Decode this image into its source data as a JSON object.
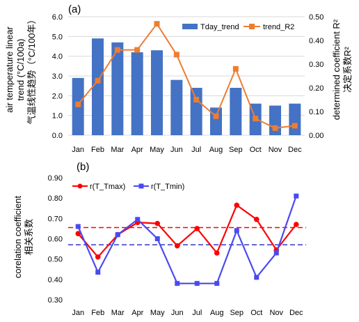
{
  "chart_data": [
    {
      "panel_label": "(a)",
      "type": "bar",
      "categories": [
        "Jan",
        "Feb",
        "Mar",
        "Apr",
        "May",
        "Jun",
        "Jul",
        "Aug",
        "Sep",
        "Oct",
        "Nov",
        "Dec"
      ],
      "ylabel": [
        "air temperature linear",
        "trend (°C/100a)",
        "气温线性趋势（°C/100年）"
      ],
      "y2label": [
        "determined coefficient R²",
        "决定系数R²"
      ],
      "ylim": [
        0,
        6
      ],
      "yticks": [
        "0.0",
        "1.0",
        "2.0",
        "3.0",
        "4.0",
        "5.0",
        "6.0"
      ],
      "y2lim": [
        0,
        0.5
      ],
      "y2ticks": [
        "0.00",
        "0.10",
        "0.20",
        "0.30",
        "0.40",
        "0.50"
      ],
      "legend_position": "top-right",
      "series": [
        {
          "name": "Tday_trend",
          "type": "bar",
          "axis": "left",
          "color": "#4472C4",
          "values": [
            2.9,
            4.9,
            4.7,
            4.2,
            4.3,
            2.8,
            2.4,
            1.4,
            2.4,
            1.6,
            1.5,
            1.6
          ]
        },
        {
          "name": "trend_R2",
          "type": "line",
          "axis": "right",
          "color": "#ED7D31",
          "marker": "square",
          "values": [
            0.13,
            0.23,
            0.36,
            0.36,
            0.47,
            0.34,
            0.15,
            0.08,
            0.28,
            0.07,
            0.03,
            0.04
          ]
        }
      ]
    },
    {
      "panel_label": "(b)",
      "type": "line",
      "categories": [
        "Jan",
        "Feb",
        "Mar",
        "Apr",
        "May",
        "Jun",
        "Jul",
        "Aug",
        "Sep",
        "Oct",
        "Nov",
        "Dec"
      ],
      "ylabel": [
        "corelation coefficient",
        "相关系数"
      ],
      "ylim": [
        0.3,
        0.9
      ],
      "yticks": [
        "0.30",
        "0.40",
        "0.50",
        "0.60",
        "0.70",
        "0.80",
        "0.90"
      ],
      "legend_position": "top-left",
      "series": [
        {
          "name": "r(T_Tmax)",
          "color": "#FF0000",
          "marker": "circle",
          "values": [
            0.625,
            0.51,
            0.62,
            0.68,
            0.675,
            0.565,
            0.65,
            0.53,
            0.765,
            0.695,
            0.545,
            0.67
          ]
        },
        {
          "name": "r(T_Tmin)",
          "color": "#4A4AF0",
          "marker": "square",
          "values": [
            0.66,
            0.435,
            0.62,
            0.695,
            0.6,
            0.38,
            0.38,
            0.38,
            0.64,
            0.41,
            0.53,
            0.81
          ]
        }
      ],
      "reference_lines": [
        {
          "color": "#FF0000",
          "style": "dashed",
          "value": 0.655
        },
        {
          "color": "#3333CC",
          "style": "dashed",
          "value": 0.57
        }
      ]
    }
  ]
}
